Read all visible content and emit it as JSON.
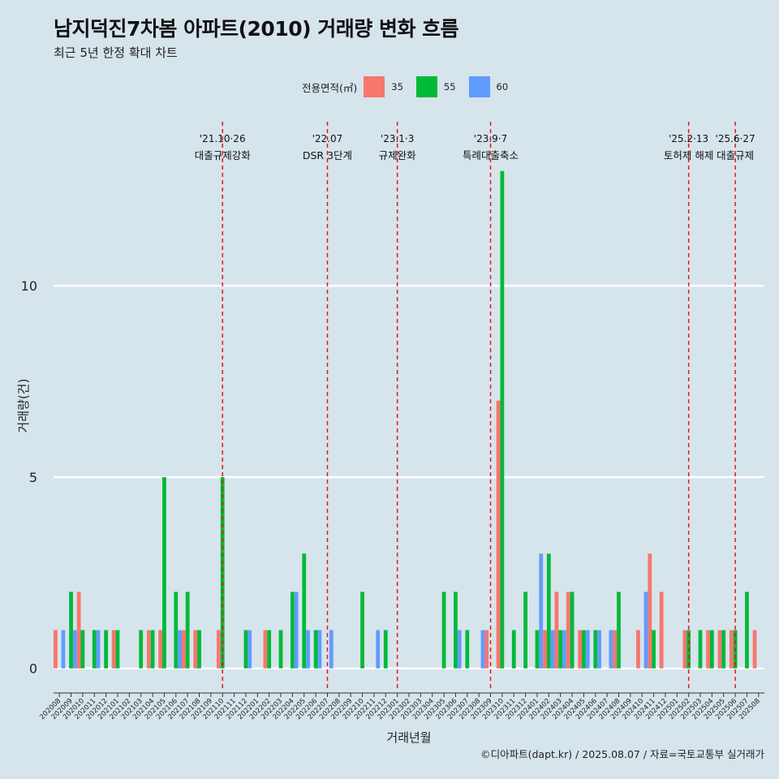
{
  "title": "남지덕진7차봄 아파트(2010) 거래량 변화 흐름",
  "subtitle": "최근 5년 한정 확대 차트",
  "legend": {
    "title": "전용면적(㎡)",
    "items": [
      {
        "label": "35",
        "color": "#f8766d"
      },
      {
        "label": "55",
        "color": "#00ba38"
      },
      {
        "label": "60",
        "color": "#619cff"
      }
    ]
  },
  "caption": "©디아파트(dapt.kr) / 2025.08.07 / 자료=국토교통부 실거래가",
  "chart_data": {
    "type": "bar",
    "xlabel": "거래년월",
    "ylabel": "거래량(건)",
    "ylim": [
      -0.6,
      14.5
    ],
    "yticks": [
      0,
      5,
      10
    ],
    "grid": true,
    "legend_position": "top",
    "categories": [
      "202008",
      "202009",
      "202010",
      "202011",
      "202012",
      "202101",
      "202102",
      "202103",
      "202104",
      "202105",
      "202106",
      "202107",
      "202108",
      "202109",
      "202110",
      "202111",
      "202112",
      "202201",
      "202202",
      "202203",
      "202204",
      "202205",
      "202206",
      "202207",
      "202208",
      "202209",
      "202210",
      "202211",
      "202212",
      "202301",
      "202302",
      "202303",
      "202304",
      "202305",
      "202306",
      "202307",
      "202308",
      "202309",
      "202310",
      "202311",
      "202312",
      "202401",
      "202402",
      "202403",
      "202404",
      "202405",
      "202406",
      "202407",
      "202408",
      "202409",
      "202410",
      "202411",
      "202412",
      "202501",
      "202502",
      "202503",
      "202504",
      "202505",
      "202506",
      "202507",
      "202508"
    ],
    "series": [
      {
        "name": "35",
        "color": "#f8766d",
        "values": [
          1,
          0,
          2,
          0,
          0,
          1,
          0,
          0,
          1,
          1,
          0,
          1,
          1,
          0,
          1,
          0,
          0,
          0,
          1,
          0,
          0,
          0,
          0,
          0,
          0,
          0,
          0,
          0,
          0,
          0,
          0,
          0,
          0,
          0,
          0,
          0,
          0,
          1,
          7,
          0,
          0,
          0,
          1,
          2,
          2,
          1,
          0,
          0,
          1,
          0,
          1,
          3,
          2,
          0,
          1,
          0,
          1,
          1,
          1,
          0,
          1
        ]
      },
      {
        "name": "55",
        "color": "#00ba38",
        "values": [
          0,
          2,
          1,
          1,
          1,
          1,
          0,
          1,
          1,
          5,
          2,
          2,
          1,
          0,
          5,
          0,
          1,
          0,
          1,
          1,
          2,
          3,
          1,
          0,
          0,
          0,
          2,
          0,
          1,
          0,
          0,
          0,
          0,
          2,
          2,
          1,
          0,
          0,
          13,
          1,
          2,
          1,
          3,
          1,
          2,
          1,
          1,
          0,
          2,
          0,
          0,
          1,
          0,
          0,
          1,
          1,
          1,
          1,
          1,
          2,
          0
        ]
      },
      {
        "name": "60",
        "color": "#619cff",
        "values": [
          1,
          1,
          0,
          1,
          0,
          0,
          0,
          0,
          0,
          0,
          1,
          0,
          0,
          0,
          0,
          0,
          1,
          0,
          0,
          0,
          2,
          1,
          1,
          1,
          0,
          0,
          0,
          1,
          0,
          0,
          0,
          0,
          0,
          0,
          1,
          0,
          1,
          0,
          0,
          0,
          0,
          3,
          1,
          1,
          0,
          1,
          1,
          1,
          0,
          0,
          2,
          0,
          0,
          0,
          0,
          0,
          0,
          0,
          0,
          0,
          0
        ]
      }
    ],
    "events": [
      {
        "month": "202110",
        "date": "'21.10·26",
        "label": "대출규제강화"
      },
      {
        "month": "202207",
        "date": "'22.07",
        "label": "DSR 3단계"
      },
      {
        "month": "202301",
        "date": "'23.1·3",
        "label": "규제완화"
      },
      {
        "month": "202309",
        "date": "'23.9·7",
        "label": "특례대출축소"
      },
      {
        "month": "202502",
        "date": "'25.2·13",
        "label": "토허제 해제"
      },
      {
        "month": "202506",
        "date": "'25.6·27",
        "label": "대출규제"
      }
    ]
  }
}
